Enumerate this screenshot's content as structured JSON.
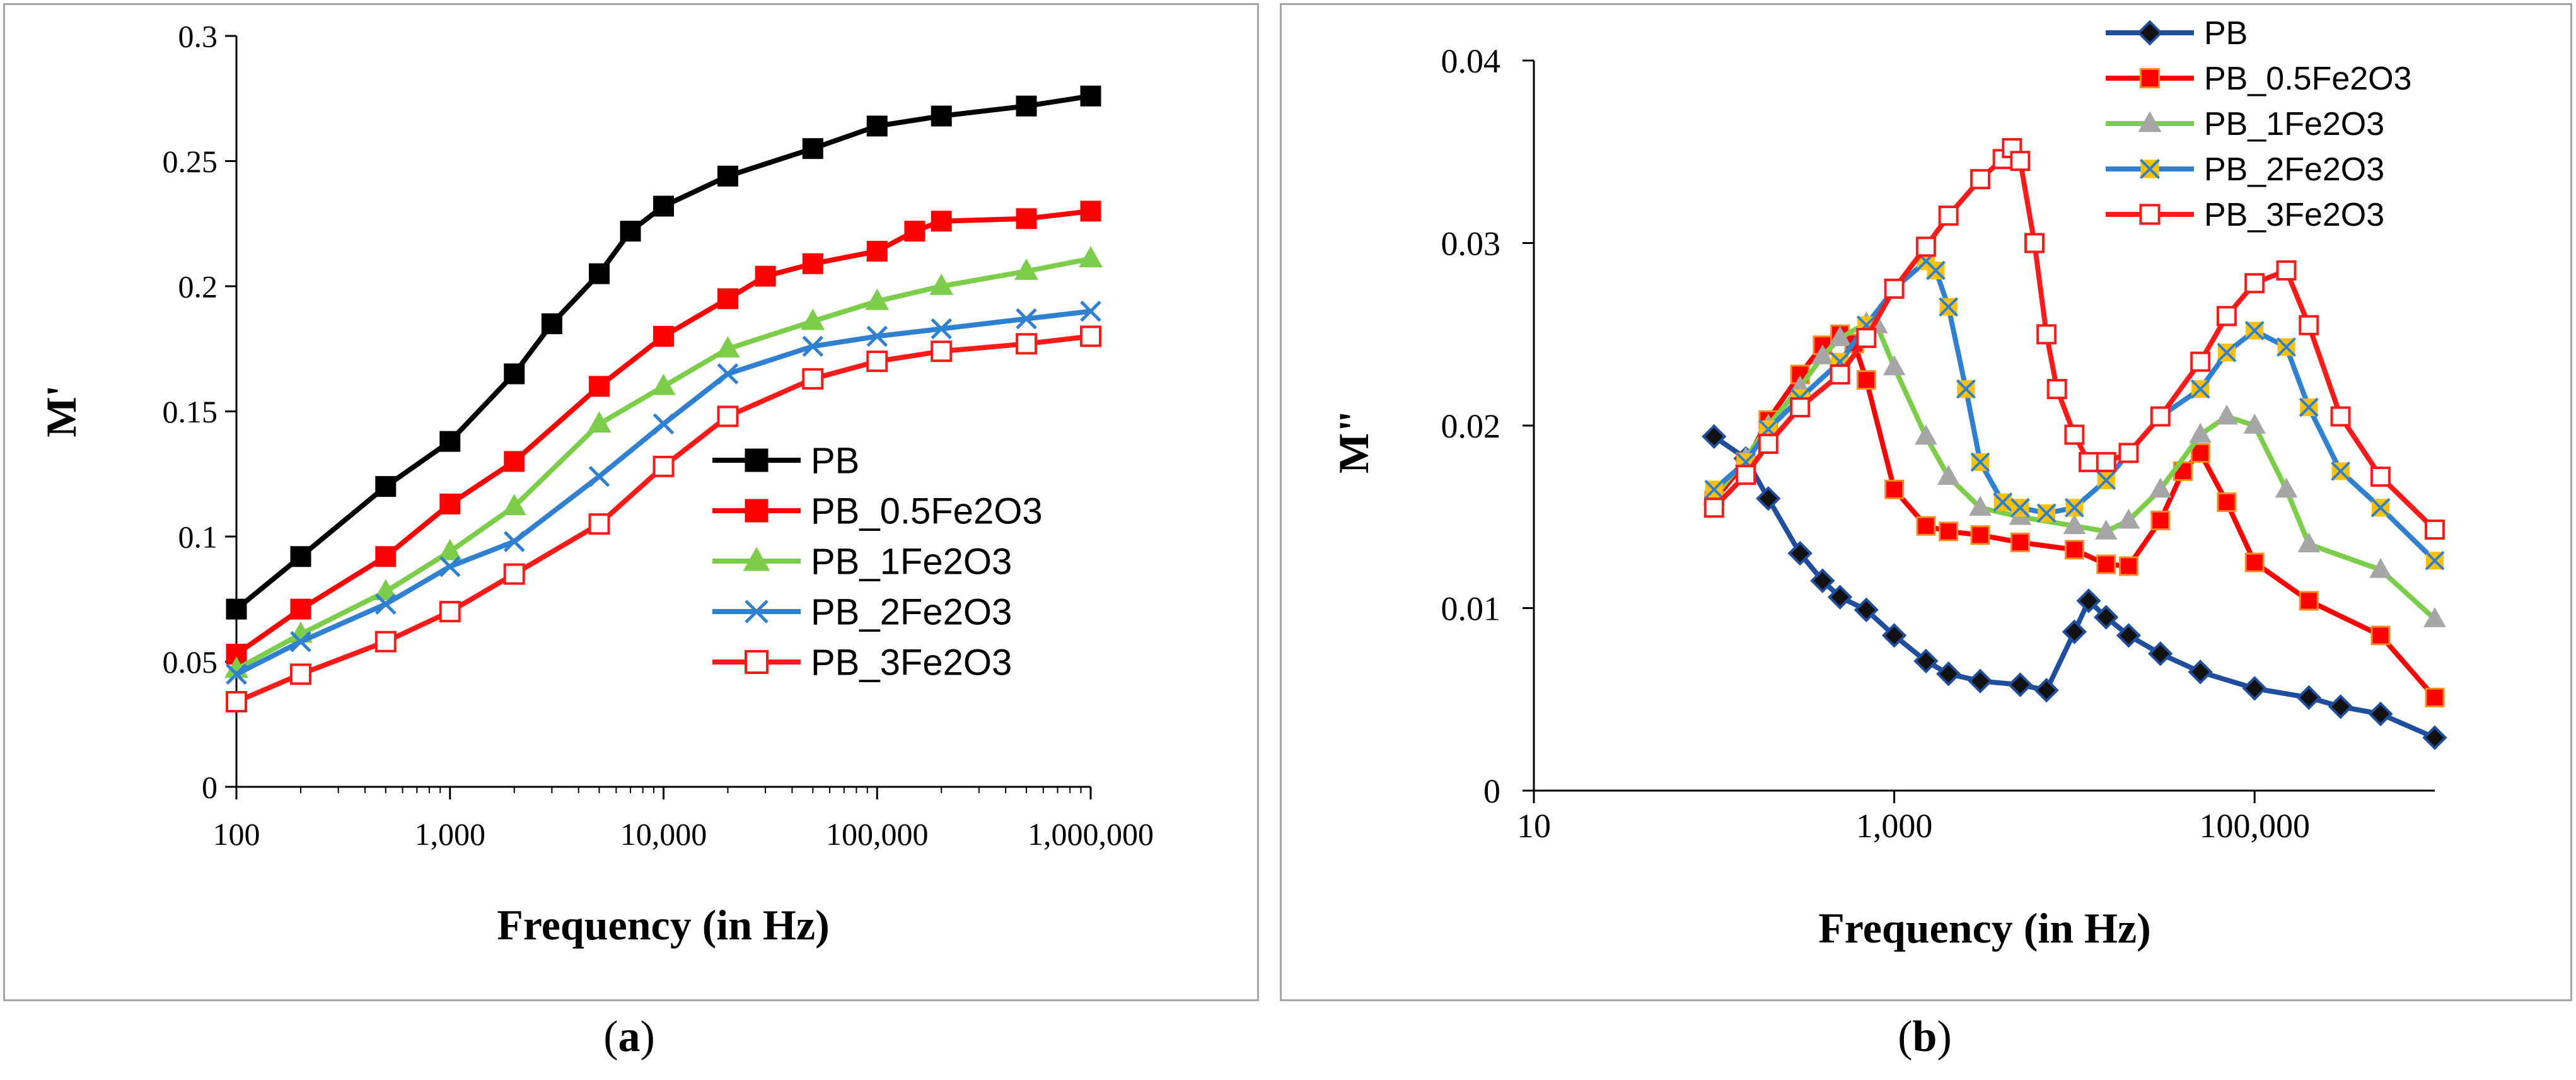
{
  "captions": {
    "a_letter": "a",
    "b_letter": "b"
  },
  "colors": {
    "PB": "#000000",
    "PB_0.5Fe2O3": "#ff0000",
    "PB_1Fe2O3": "#7ccd4a",
    "PB_2Fe2O3": "#2f80d1",
    "PB_3Fe2O3": "#ff1a1a",
    "b_marker_PB": "#1f4e9e",
    "b_marker_05": "#ff8c1a",
    "b_marker_1": "#a6a6a6",
    "b_marker_2": "#ffc000"
  },
  "chart_data": [
    {
      "type": "line",
      "panel": "a",
      "title": "",
      "xlabel": "Frequency (in Hz)",
      "ylabel": "M'",
      "xscale": "log",
      "xlim": [
        100,
        1000000
      ],
      "ylim": [
        0,
        0.3
      ],
      "xticks": [
        100,
        1000,
        10000,
        100000,
        1000000
      ],
      "xtick_labels": [
        "100",
        "1,000",
        "10,000",
        "100,000",
        "1,000,000"
      ],
      "yticks": [
        0,
        0.05,
        0.1,
        0.15,
        0.2,
        0.25,
        0.3
      ],
      "ytick_labels": [
        "0",
        "0.05",
        "0.1",
        "0.15",
        "0.2",
        "0.25",
        "0.3"
      ],
      "legend_position": "center-right",
      "series": [
        {
          "name": "PB",
          "marker": "square-filled",
          "x": [
            100,
            200,
            500,
            1000,
            2000,
            3000,
            5000,
            7000,
            10000,
            20000,
            50000,
            100000,
            200000,
            500000,
            1000000
          ],
          "y": [
            0.071,
            0.092,
            0.12,
            0.138,
            0.165,
            0.185,
            0.205,
            0.222,
            0.232,
            0.244,
            0.255,
            0.264,
            0.268,
            0.272,
            0.276
          ]
        },
        {
          "name": "PB_0.5Fe2O3",
          "marker": "square-filled",
          "x": [
            100,
            200,
            500,
            1000,
            2000,
            5000,
            10000,
            20000,
            30000,
            50000,
            100000,
            150000,
            200000,
            500000,
            1000000
          ],
          "y": [
            0.053,
            0.071,
            0.092,
            0.113,
            0.13,
            0.16,
            0.18,
            0.195,
            0.204,
            0.209,
            0.214,
            0.222,
            0.226,
            0.227,
            0.23
          ]
        },
        {
          "name": "PB_1Fe2O3",
          "marker": "triangle-filled",
          "x": [
            100,
            200,
            500,
            1000,
            2000,
            5000,
            10000,
            20000,
            50000,
            100000,
            200000,
            500000,
            1000000
          ],
          "y": [
            0.047,
            0.061,
            0.078,
            0.094,
            0.112,
            0.145,
            0.16,
            0.175,
            0.186,
            0.194,
            0.2,
            0.206,
            0.211
          ]
        },
        {
          "name": "PB_2Fe2O3",
          "marker": "x",
          "x": [
            100,
            200,
            500,
            1000,
            2000,
            5000,
            10000,
            20000,
            50000,
            100000,
            200000,
            500000,
            1000000
          ],
          "y": [
            0.045,
            0.058,
            0.073,
            0.088,
            0.098,
            0.124,
            0.145,
            0.165,
            0.176,
            0.18,
            0.183,
            0.187,
            0.19
          ]
        },
        {
          "name": "PB_3Fe2O3",
          "marker": "square-open",
          "x": [
            100,
            200,
            500,
            1000,
            2000,
            5000,
            10000,
            20000,
            50000,
            100000,
            200000,
            500000,
            1000000
          ],
          "y": [
            0.034,
            0.045,
            0.058,
            0.07,
            0.085,
            0.105,
            0.128,
            0.148,
            0.163,
            0.17,
            0.174,
            0.177,
            0.18
          ]
        }
      ]
    },
    {
      "type": "line",
      "panel": "b",
      "title": "",
      "xlabel": "Frequency (in Hz)",
      "ylabel": "M\"",
      "xscale": "log",
      "xlim": [
        10,
        1000000
      ],
      "ylim": [
        0,
        0.04
      ],
      "xticks": [
        10,
        1000,
        100000
      ],
      "xtick_labels": [
        "10",
        "1,000",
        "100,000"
      ],
      "yticks": [
        0,
        0.01,
        0.02,
        0.03,
        0.04
      ],
      "ytick_labels": [
        "0",
        "0.01",
        "0.02",
        "0.03",
        "0.04"
      ],
      "legend_position": "top-right",
      "series": [
        {
          "name": "PB",
          "marker": "diamond-filled",
          "x": [
            100,
            150,
            200,
            300,
            400,
            500,
            700,
            1000,
            1500,
            2000,
            3000,
            5000,
            7000,
            10000,
            12000,
            15000,
            20000,
            30000,
            50000,
            100000,
            200000,
            300000,
            500000,
            1000000
          ],
          "y": [
            0.0194,
            0.0182,
            0.016,
            0.013,
            0.0115,
            0.0106,
            0.0099,
            0.0085,
            0.0071,
            0.0064,
            0.006,
            0.0058,
            0.0055,
            0.0087,
            0.0104,
            0.0095,
            0.0085,
            0.0075,
            0.0065,
            0.0056,
            0.0051,
            0.0046,
            0.0042,
            0.0029
          ]
        },
        {
          "name": "PB_0.5Fe2O3",
          "marker": "square-filled",
          "x": [
            100,
            150,
            200,
            300,
            400,
            500,
            600,
            700,
            1000,
            1500,
            2000,
            3000,
            5000,
            10000,
            15000,
            20000,
            30000,
            40000,
            50000,
            70000,
            100000,
            200000,
            500000,
            1000000
          ],
          "y": [
            0.0159,
            0.018,
            0.0203,
            0.0228,
            0.0244,
            0.025,
            0.0245,
            0.0225,
            0.0165,
            0.0145,
            0.0142,
            0.014,
            0.0136,
            0.0132,
            0.0124,
            0.0123,
            0.0148,
            0.0175,
            0.0185,
            0.0158,
            0.0125,
            0.0104,
            0.0085,
            0.0051
          ]
        },
        {
          "name": "PB_1Fe2O3",
          "marker": "triangle-filled",
          "x": [
            100,
            150,
            200,
            300,
            400,
            500,
            700,
            800,
            1000,
            1500,
            2000,
            3000,
            5000,
            10000,
            15000,
            20000,
            30000,
            50000,
            70000,
            100000,
            150000,
            200000,
            500000,
            1000000
          ],
          "y": [
            0.0161,
            0.0182,
            0.02,
            0.0221,
            0.0238,
            0.0248,
            0.0256,
            0.0255,
            0.0232,
            0.0194,
            0.0172,
            0.0155,
            0.015,
            0.0145,
            0.0142,
            0.0148,
            0.0165,
            0.0195,
            0.0205,
            0.02,
            0.0165,
            0.0135,
            0.0121,
            0.0094
          ]
        },
        {
          "name": "PB_2Fe2O3",
          "marker": "x-square",
          "x": [
            100,
            150,
            200,
            300,
            500,
            700,
            1000,
            1500,
            1700,
            2000,
            2500,
            3000,
            4000,
            5000,
            7000,
            10000,
            15000,
            20000,
            30000,
            50000,
            70000,
            100000,
            150000,
            200000,
            300000,
            500000,
            1000000
          ],
          "y": [
            0.0165,
            0.018,
            0.0198,
            0.0215,
            0.0235,
            0.0255,
            0.0275,
            0.029,
            0.0285,
            0.0265,
            0.022,
            0.018,
            0.0158,
            0.0155,
            0.0152,
            0.0155,
            0.017,
            0.0185,
            0.0205,
            0.022,
            0.024,
            0.0252,
            0.0243,
            0.021,
            0.0175,
            0.0155,
            0.0126
          ]
        },
        {
          "name": "PB_3Fe2O3",
          "marker": "square-open",
          "x": [
            100,
            150,
            200,
            300,
            500,
            700,
            1000,
            1500,
            2000,
            3000,
            4000,
            4500,
            5000,
            6000,
            7000,
            8000,
            10000,
            12000,
            15000,
            20000,
            30000,
            50000,
            70000,
            100000,
            150000,
            200000,
            300000,
            500000,
            1000000
          ],
          "y": [
            0.0155,
            0.0173,
            0.019,
            0.021,
            0.0228,
            0.0248,
            0.0275,
            0.0298,
            0.0315,
            0.0335,
            0.0346,
            0.0352,
            0.0345,
            0.03,
            0.025,
            0.022,
            0.0195,
            0.018,
            0.018,
            0.0185,
            0.0205,
            0.0235,
            0.026,
            0.0278,
            0.0285,
            0.0255,
            0.0205,
            0.0172,
            0.0143
          ]
        }
      ]
    }
  ]
}
